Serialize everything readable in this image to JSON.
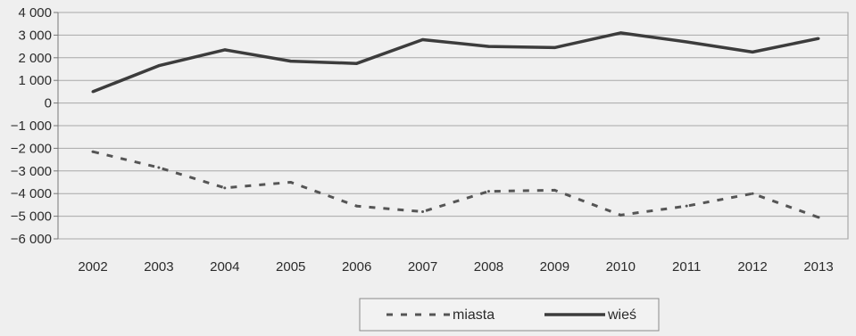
{
  "chart_data": {
    "type": "line",
    "categories": [
      "2002",
      "2003",
      "2004",
      "2005",
      "2006",
      "2007",
      "2008",
      "2009",
      "2010",
      "2011",
      "2012",
      "2013"
    ],
    "ylim": [
      -6000,
      4000
    ],
    "yticks": [
      4000,
      3000,
      2000,
      1000,
      0,
      -1000,
      -2000,
      -3000,
      -4000,
      -5000,
      -6000
    ],
    "ytick_labels": [
      "4 000",
      "3 000",
      "2 000",
      "1 000",
      "0",
      "−1 000",
      "−2 000",
      "−3 000",
      "−4 000",
      "−5 000",
      "−6 000"
    ],
    "grid": true,
    "legend_position": "bottom-center",
    "series": [
      {
        "name": "miasta",
        "style": "dashed",
        "color": "#555555",
        "values": [
          -2150,
          -2850,
          -3750,
          -3500,
          -4550,
          -4800,
          -3900,
          -3850,
          -4950,
          -4550,
          -4000,
          -5050
        ]
      },
      {
        "name": "wieś",
        "style": "solid",
        "color": "#3c3c3c",
        "values": [
          500,
          1650,
          2350,
          1850,
          1750,
          2800,
          2500,
          2450,
          3100,
          2700,
          2250,
          2850
        ]
      }
    ]
  }
}
